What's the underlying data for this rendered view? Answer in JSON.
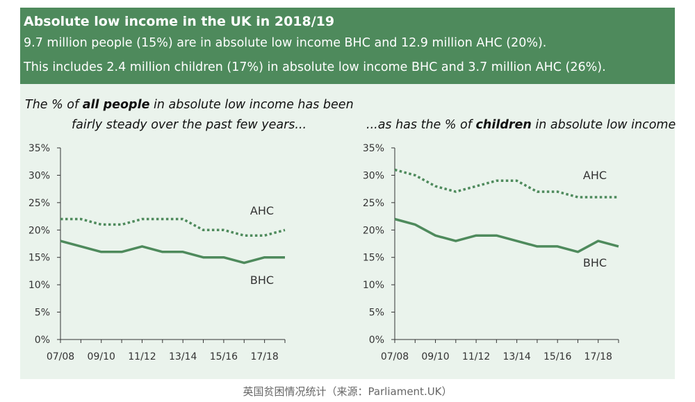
{
  "banner": {
    "title": "Absolute low income in the UK in 2018/19",
    "line1": "9.7 million people (15%) are in absolute low income BHC and 12.9 million AHC (20%).",
    "line2": "This includes 2.4 million children (17%) in absolute low income BHC and 3.7 million AHC (26%)."
  },
  "left_caption": {
    "l1_pre": "The % of ",
    "l1_bold": "all people",
    "l1_post": " in absolute low income has been",
    "l2": "fairly steady over the past few years..."
  },
  "right_caption": {
    "pre": "...as has the % of ",
    "bold": "children",
    "post": " in absolute low income"
  },
  "chart_data": [
    {
      "type": "line",
      "x": [
        "07/08",
        "08/09",
        "09/10",
        "10/11",
        "11/12",
        "12/13",
        "13/14",
        "14/15",
        "15/16",
        "16/17",
        "17/18",
        "18/19"
      ],
      "x_tick_labels": [
        "07/08",
        "09/10",
        "11/12",
        "13/14",
        "15/16",
        "17/18"
      ],
      "y_tick_labels": [
        "0%",
        "5%",
        "10%",
        "15%",
        "20%",
        "25%",
        "30%",
        "35%"
      ],
      "ylim": [
        0,
        35
      ],
      "series": [
        {
          "name": "AHC",
          "style": "dotted",
          "values": [
            22,
            22,
            21,
            21,
            22,
            22,
            22,
            20,
            20,
            19,
            19,
            20
          ]
        },
        {
          "name": "BHC",
          "style": "solid",
          "values": [
            18,
            17,
            16,
            16,
            17,
            16,
            16,
            15,
            15,
            14,
            15,
            15
          ]
        }
      ]
    },
    {
      "type": "line",
      "x": [
        "07/08",
        "08/09",
        "09/10",
        "10/11",
        "11/12",
        "12/13",
        "13/14",
        "14/15",
        "15/16",
        "16/17",
        "17/18",
        "18/19"
      ],
      "x_tick_labels": [
        "07/08",
        "09/10",
        "11/12",
        "13/14",
        "15/16",
        "17/18"
      ],
      "y_tick_labels": [
        "0%",
        "5%",
        "10%",
        "15%",
        "20%",
        "25%",
        "30%",
        "35%"
      ],
      "ylim": [
        0,
        35
      ],
      "series": [
        {
          "name": "AHC",
          "style": "dotted",
          "values": [
            31,
            30,
            28,
            27,
            28,
            29,
            29,
            27,
            27,
            26,
            26,
            26
          ]
        },
        {
          "name": "BHC",
          "style": "solid",
          "values": [
            22,
            21,
            19,
            18,
            19,
            19,
            18,
            17,
            17,
            16,
            18,
            17
          ]
        }
      ]
    }
  ],
  "colors": {
    "banner": "#4e8a5c",
    "panel": "#eaf3ec",
    "line": "#4e8a5c",
    "axis": "#333333"
  },
  "footer_caption": "英国贫困情况统计（来源：Parliament.UK）"
}
